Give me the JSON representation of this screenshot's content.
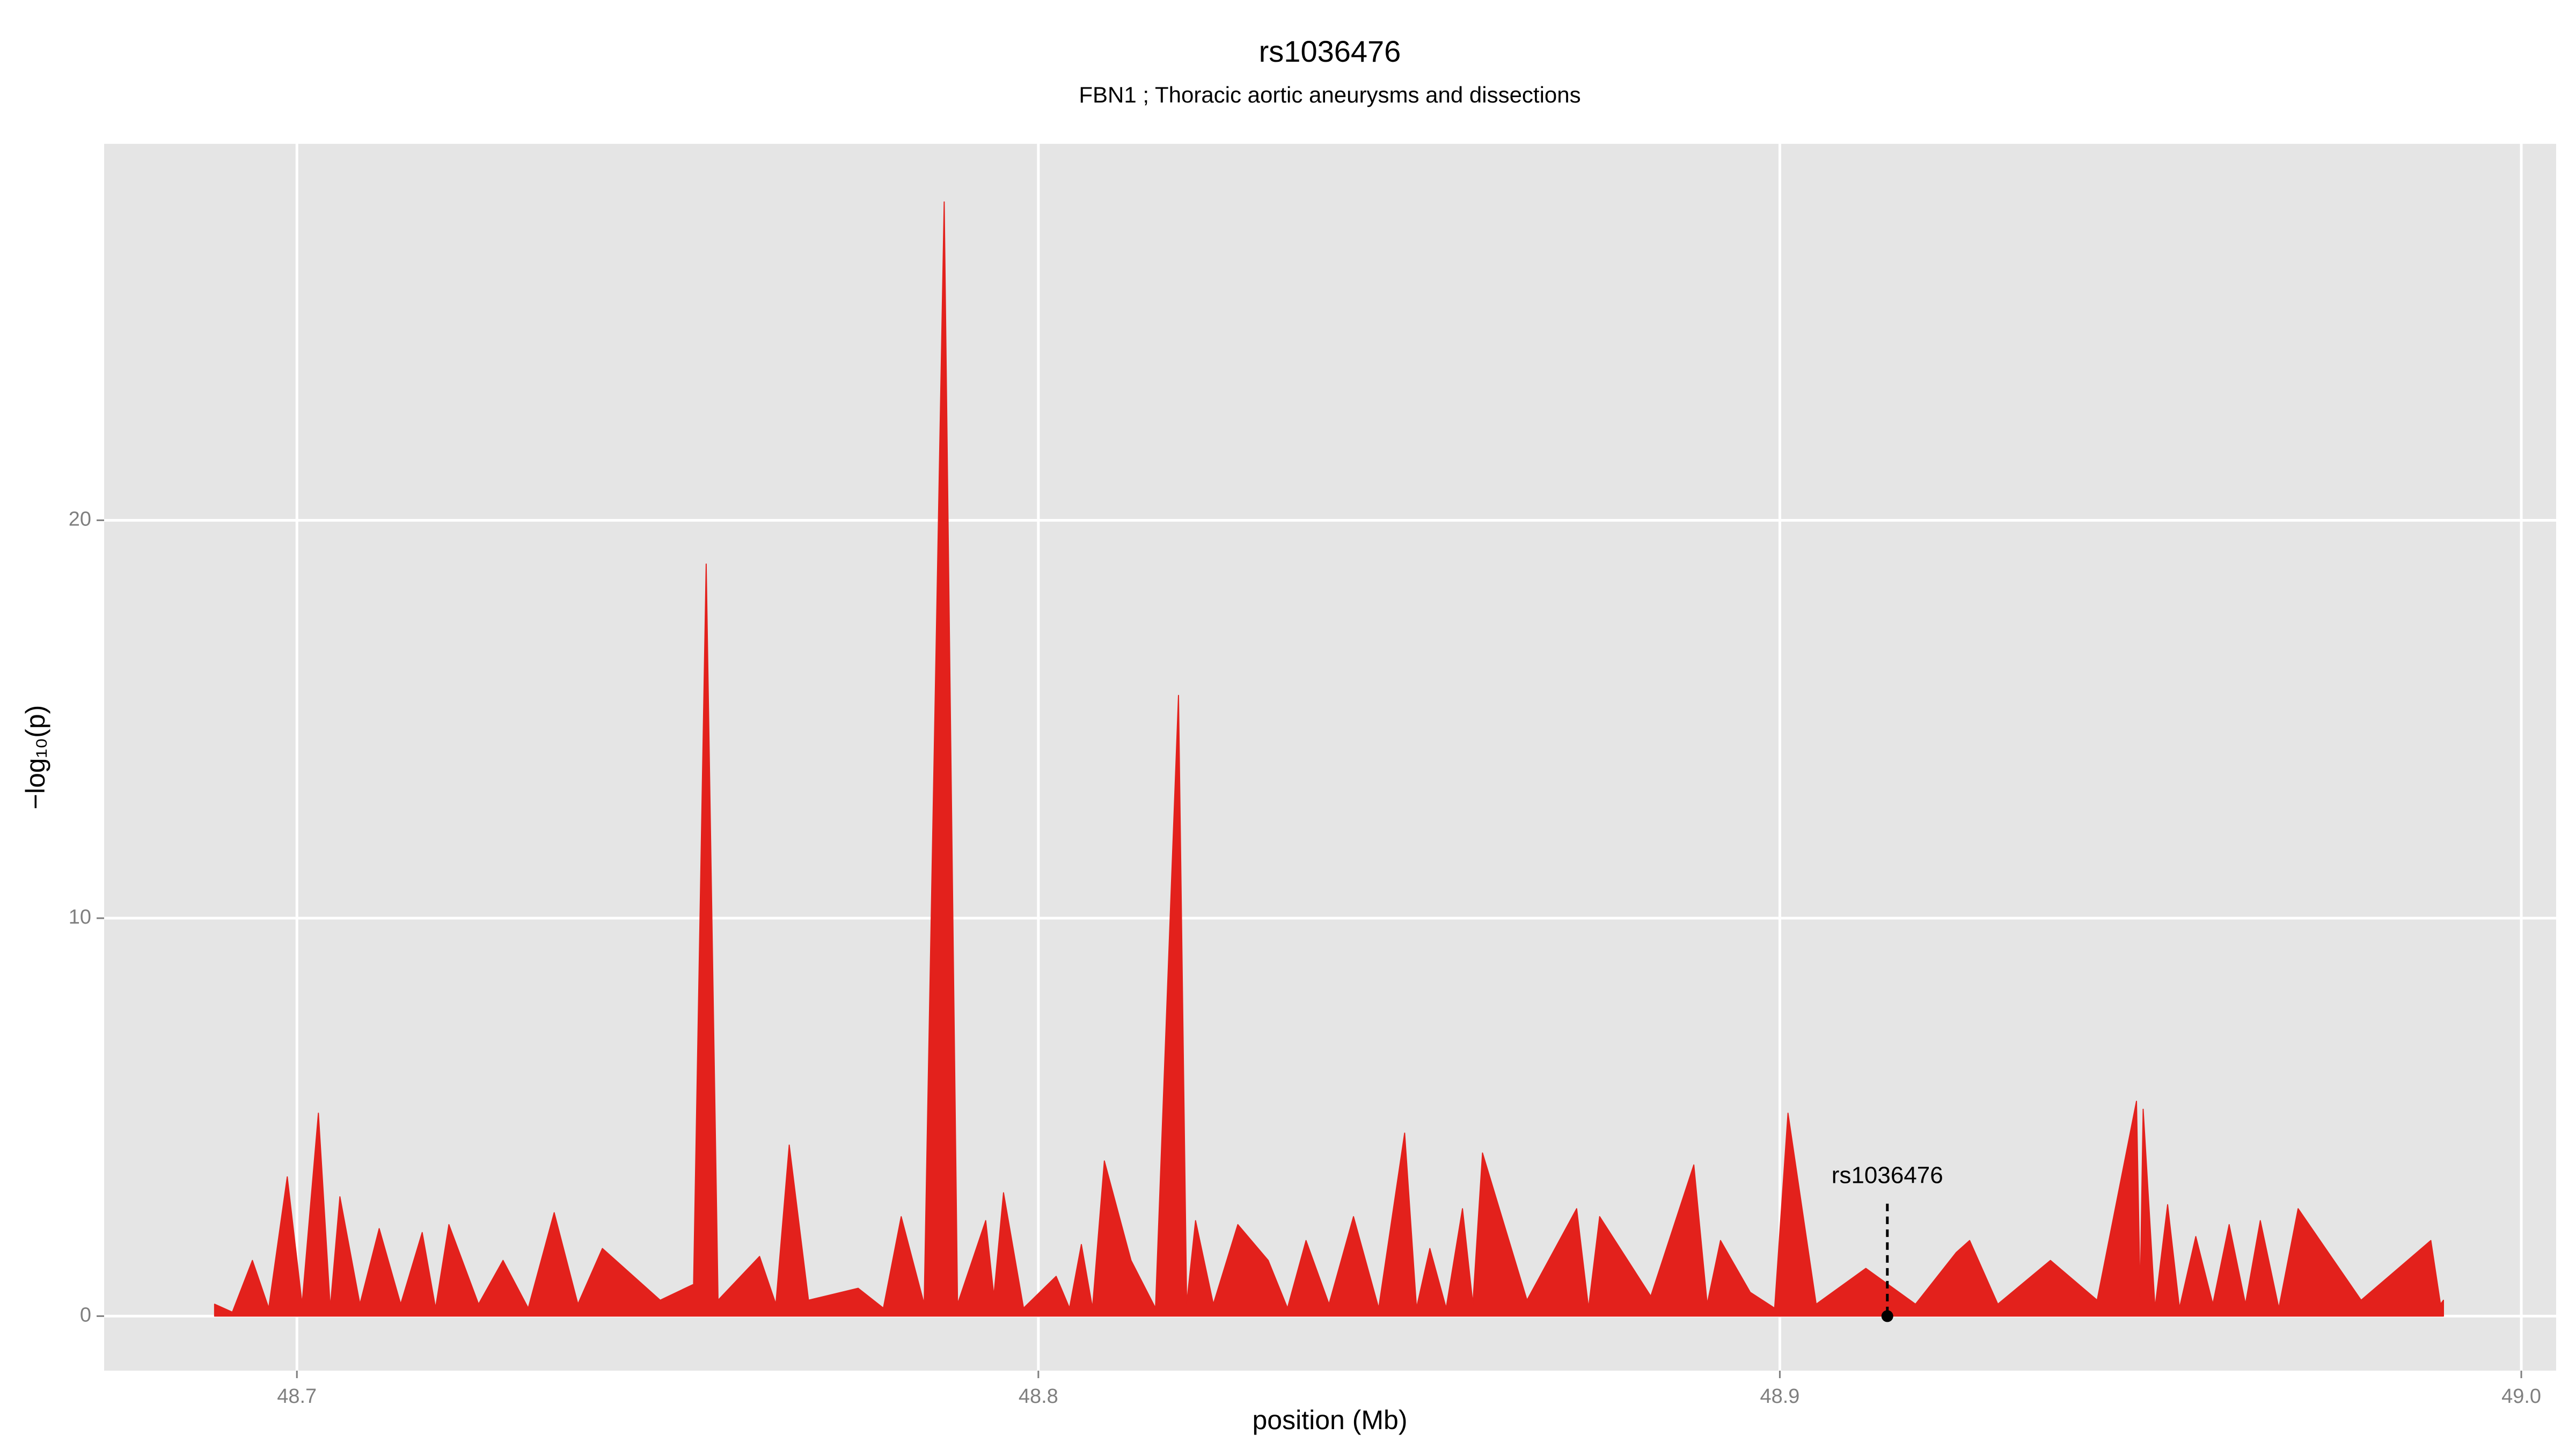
{
  "chart_data": {
    "type": "area",
    "title": "rs1036476",
    "subtitle": "FBN1 ; Thoracic aortic aneurysms and dissections",
    "x_label": "position (Mb)",
    "y_label": "−log₁₀(p)",
    "color": "#e3211c",
    "x": [
      48.6889,
      48.6913,
      48.694,
      48.6962,
      48.6987,
      48.7007,
      48.7029,
      48.7045,
      48.7058,
      48.7085,
      48.7111,
      48.714,
      48.7169,
      48.7187,
      48.7205,
      48.7245,
      48.7278,
      48.7312,
      48.7347,
      48.7379,
      48.7412,
      48.749,
      48.7535,
      48.7552,
      48.7568,
      48.7624,
      48.7646,
      48.7664,
      48.769,
      48.7757,
      48.7791,
      48.7815,
      48.7846,
      48.7873,
      48.7891,
      48.7929,
      48.794,
      48.7953,
      48.798,
      48.8024,
      48.8042,
      48.8058,
      48.8073,
      48.8089,
      48.8125,
      48.8158,
      48.8189,
      48.82,
      48.8212,
      48.8236,
      48.8269,
      48.831,
      48.8336,
      48.8361,
      48.8392,
      48.8425,
      48.8459,
      48.8494,
      48.851,
      48.8528,
      48.855,
      48.8572,
      48.8586,
      48.8599,
      48.8659,
      48.8726,
      48.8742,
      48.8757,
      48.8826,
      48.8884,
      48.8902,
      48.892,
      48.896,
      48.8993,
      48.9011,
      48.9049,
      48.9116,
      48.9183,
      48.9238,
      48.9256,
      48.9294,
      48.9365,
      48.9428,
      48.9481,
      48.9486,
      48.949,
      48.9506,
      48.9523,
      48.9539,
      48.9561,
      48.9584,
      48.9606,
      48.9628,
      48.9648,
      48.9673,
      48.9699,
      48.9784,
      48.9878,
      48.9891,
      48.9895
    ],
    "values": [
      0.3,
      0.1,
      1.4,
      0.2,
      3.5,
      0.3,
      5.1,
      0.2,
      3.0,
      0.3,
      2.2,
      0.3,
      2.1,
      0.2,
      2.3,
      0.3,
      1.4,
      0.2,
      2.6,
      0.3,
      1.7,
      0.4,
      0.8,
      18.9,
      0.4,
      1.5,
      0.3,
      4.3,
      0.4,
      0.7,
      0.2,
      2.5,
      0.3,
      28.0,
      0.3,
      2.4,
      0.5,
      3.1,
      0.2,
      1.0,
      0.2,
      1.8,
      0.2,
      3.9,
      1.4,
      0.2,
      15.6,
      0.3,
      2.4,
      0.3,
      2.3,
      1.4,
      0.2,
      1.9,
      0.3,
      2.5,
      0.2,
      4.6,
      0.2,
      1.7,
      0.2,
      2.7,
      0.3,
      4.1,
      0.4,
      2.7,
      0.2,
      2.5,
      0.5,
      3.8,
      0.3,
      1.9,
      0.6,
      0.2,
      5.1,
      0.3,
      1.2,
      0.3,
      1.6,
      1.9,
      0.3,
      1.4,
      0.4,
      5.4,
      0.5,
      5.2,
      0.2,
      2.8,
      0.2,
      2.0,
      0.3,
      2.3,
      0.3,
      2.4,
      0.2,
      2.7,
      0.4,
      1.9,
      0.3,
      0.4
    ],
    "annotation": {
      "text": "rs1036476",
      "x": 48.9145,
      "y": 0,
      "label_y": 3.5
    },
    "xlim": [
      48.674,
      49.0047
    ],
    "ylim": [
      -1.37,
      29.46
    ],
    "xticks": [
      48.7,
      48.8,
      48.9,
      {
        "value": 49,
        "label": "49.0"
      }
    ],
    "yticks": [
      0,
      10,
      20
    ],
    "grid": true
  }
}
